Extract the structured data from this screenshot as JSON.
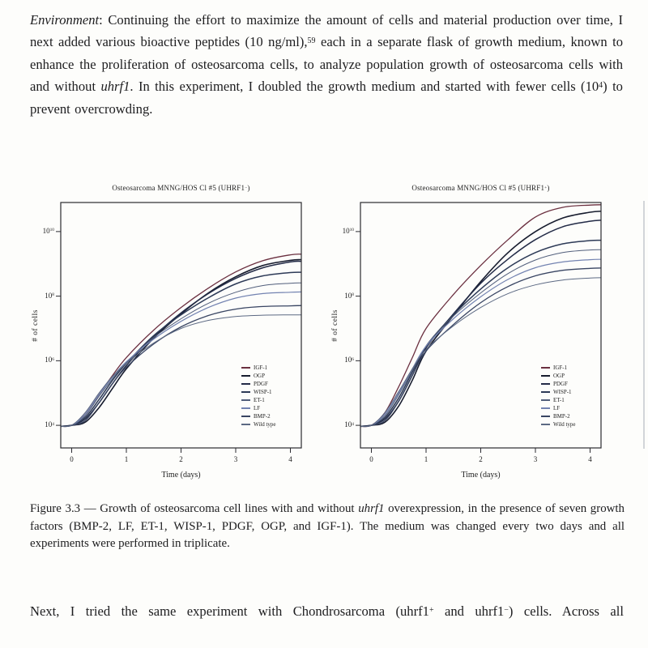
{
  "page": {
    "background": "#fdfdfb",
    "text_color": "#1d1d1f",
    "top_paragraph": [
      {
        "t": "Environment",
        "s": "i"
      },
      {
        "t": ": Continuing the effort to maximize the amount of cells and material production over time, I next added various bioactive peptides (10 ng/ml),",
        "s": ""
      },
      {
        "t": "59",
        "s": "sup"
      },
      {
        "t": " each in a separate flask of growth medium, known to enhance the proliferation of osteosarcoma cells, to analyze population growth of osteosarcoma cells with and without ",
        "s": ""
      },
      {
        "t": "uhrf1",
        "s": "i"
      },
      {
        "t": ". In this experiment, I doubled the growth medium and started with fewer cells (10",
        "s": ""
      },
      {
        "t": "4",
        "s": "sup"
      },
      {
        "t": ") to prevent overcrowding.",
        "s": ""
      }
    ],
    "caption": [
      {
        "t": "Figure 3.3 — Growth of osteosarcoma cell lines with and without ",
        "s": ""
      },
      {
        "t": "uhrf1",
        "s": "i"
      },
      {
        "t": " overexpression, in the presence of seven growth factors (BMP-2, LF, ET-1, WISP-1, PDGF, OGP, and IGF-1). The medium was changed every two days and all experiments were performed in triplicate.",
        "s": ""
      }
    ],
    "bottom_paragraph": [
      {
        "t": "Next, I tried the same experiment with Chondrosarcoma (uhrf1",
        "s": ""
      },
      {
        "t": "+",
        "s": "sup"
      },
      {
        "t": " and uhrf1",
        "s": ""
      },
      {
        "t": "−",
        "s": "sup"
      },
      {
        "t": ") cells. Across all",
        "s": ""
      }
    ]
  },
  "chart_data": [
    {
      "type": "line",
      "title_parts": [
        {
          "t": "Osteosarcoma MNNG/HOS Cl #5 (UHRF1",
          "s": ""
        },
        {
          "t": "−",
          "s": "sup"
        },
        {
          "t": ")",
          "s": ""
        }
      ],
      "xlabel": "Time (days)",
      "ylabel": "# of cells",
      "x_ticks": [
        0,
        1,
        2,
        3,
        4
      ],
      "y_tick_exponents": [
        10,
        8,
        6,
        4
      ],
      "xlim": [
        -0.2,
        4.2
      ],
      "ylim_log10": [
        3.3,
        10.9
      ],
      "grid": false,
      "legend_position": "lower right",
      "axis_color": "#2b2b30",
      "x_days": [
        -0.2,
        0,
        0.25,
        0.5,
        0.75,
        1,
        1.5,
        2,
        2.5,
        3,
        3.5,
        4,
        4.2
      ],
      "series": [
        {
          "name": "IGF-1",
          "color": "#6b3040",
          "width": 1.3,
          "log10_cells": [
            3.97,
            4.0,
            4.35,
            4.95,
            5.55,
            6.1,
            6.95,
            7.65,
            8.25,
            8.75,
            9.1,
            9.28,
            9.3
          ]
        },
        {
          "name": "OGP",
          "color": "#171c2e",
          "width": 1.6,
          "log10_cells": [
            3.97,
            4.0,
            4.1,
            4.55,
            5.15,
            5.75,
            6.7,
            7.45,
            8.1,
            8.6,
            8.95,
            9.11,
            9.13
          ]
        },
        {
          "name": "PDGF",
          "color": "#232b47",
          "width": 1.5,
          "log10_cells": [
            3.97,
            4.0,
            4.2,
            4.7,
            5.3,
            5.85,
            6.75,
            7.48,
            8.08,
            8.55,
            8.88,
            9.06,
            9.08
          ]
        },
        {
          "name": "WISP-1",
          "color": "#2d3a57",
          "width": 1.5,
          "log10_cells": [
            3.97,
            4.0,
            4.25,
            4.8,
            5.4,
            5.92,
            6.78,
            7.42,
            7.95,
            8.38,
            8.63,
            8.73,
            8.74
          ]
        },
        {
          "name": "ET-1",
          "color": "#515e7b",
          "width": 1.0,
          "log10_cells": [
            3.97,
            4.0,
            4.3,
            4.9,
            5.45,
            5.95,
            6.72,
            7.3,
            7.78,
            8.12,
            8.33,
            8.4,
            8.41
          ]
        },
        {
          "name": "LF",
          "color": "#7383b1",
          "width": 1.2,
          "log10_cells": [
            3.97,
            4.0,
            4.35,
            4.95,
            5.5,
            5.97,
            6.67,
            7.22,
            7.65,
            7.94,
            8.08,
            8.12,
            8.13
          ]
        },
        {
          "name": "BMP-2",
          "color": "#394563",
          "width": 1.3,
          "log10_cells": [
            3.97,
            4.0,
            4.15,
            4.7,
            5.3,
            5.8,
            6.52,
            7.05,
            7.4,
            7.6,
            7.68,
            7.7,
            7.71
          ]
        },
        {
          "name": "Wild type",
          "color": "#5c6983",
          "width": 1.0,
          "log10_cells": [
            3.97,
            4.0,
            4.4,
            5.0,
            5.52,
            5.92,
            6.55,
            7.0,
            7.25,
            7.37,
            7.41,
            7.42,
            7.42
          ]
        }
      ]
    },
    {
      "type": "line",
      "title_parts": [
        {
          "t": "Osteosarcoma MNNG/HOS Cl #5 (UHRF1",
          "s": ""
        },
        {
          "t": "+",
          "s": "sup"
        },
        {
          "t": ")",
          "s": ""
        }
      ],
      "xlabel": "Time (days)",
      "ylabel": "# of cells",
      "x_ticks": [
        0,
        1,
        2,
        3,
        4
      ],
      "y_tick_exponents": [
        10,
        8,
        6,
        4
      ],
      "xlim": [
        -0.2,
        4.2
      ],
      "ylim_log10": [
        3.3,
        10.9
      ],
      "grid": false,
      "legend_position": "lower right",
      "axis_color": "#2b2b30",
      "x_days": [
        -0.2,
        0,
        0.25,
        0.5,
        0.75,
        1,
        1.5,
        2,
        2.5,
        3,
        3.5,
        4,
        4.2
      ],
      "series": [
        {
          "name": "IGF-1",
          "color": "#6b3040",
          "width": 1.3,
          "log10_cells": [
            3.97,
            4.0,
            4.4,
            5.2,
            6.1,
            7.0,
            8.05,
            8.95,
            9.75,
            10.45,
            10.75,
            10.82,
            10.83
          ]
        },
        {
          "name": "OGP",
          "color": "#171c2e",
          "width": 1.6,
          "log10_cells": [
            3.97,
            4.0,
            4.1,
            4.6,
            5.4,
            6.3,
            7.4,
            8.45,
            9.35,
            10.0,
            10.42,
            10.6,
            10.63
          ]
        },
        {
          "name": "PDGF",
          "color": "#232b47",
          "width": 1.5,
          "log10_cells": [
            3.97,
            4.0,
            4.2,
            4.75,
            5.55,
            6.4,
            7.45,
            8.4,
            9.15,
            9.75,
            10.15,
            10.32,
            10.35
          ]
        },
        {
          "name": "WISP-1",
          "color": "#2d3a57",
          "width": 1.5,
          "log10_cells": [
            3.97,
            4.0,
            4.25,
            4.85,
            5.65,
            6.45,
            7.42,
            8.22,
            8.88,
            9.35,
            9.62,
            9.72,
            9.73
          ]
        },
        {
          "name": "ET-1",
          "color": "#515e7b",
          "width": 1.0,
          "log10_cells": [
            3.97,
            4.0,
            4.3,
            4.95,
            5.7,
            6.45,
            7.38,
            8.1,
            8.7,
            9.12,
            9.35,
            9.43,
            9.44
          ]
        },
        {
          "name": "LF",
          "color": "#7383b1",
          "width": 1.2,
          "log10_cells": [
            3.97,
            4.0,
            4.35,
            5.0,
            5.75,
            6.45,
            7.3,
            7.98,
            8.52,
            8.88,
            9.06,
            9.13,
            9.14
          ]
        },
        {
          "name": "BMP-2",
          "color": "#394563",
          "width": 1.3,
          "log10_cells": [
            3.97,
            4.0,
            4.15,
            4.75,
            5.55,
            6.3,
            7.12,
            7.8,
            8.3,
            8.63,
            8.8,
            8.86,
            8.87
          ]
        },
        {
          "name": "Wild type",
          "color": "#5c6983",
          "width": 1.0,
          "log10_cells": [
            3.97,
            4.0,
            4.4,
            5.05,
            5.75,
            6.35,
            7.08,
            7.65,
            8.08,
            8.35,
            8.5,
            8.56,
            8.57
          ]
        }
      ]
    }
  ]
}
